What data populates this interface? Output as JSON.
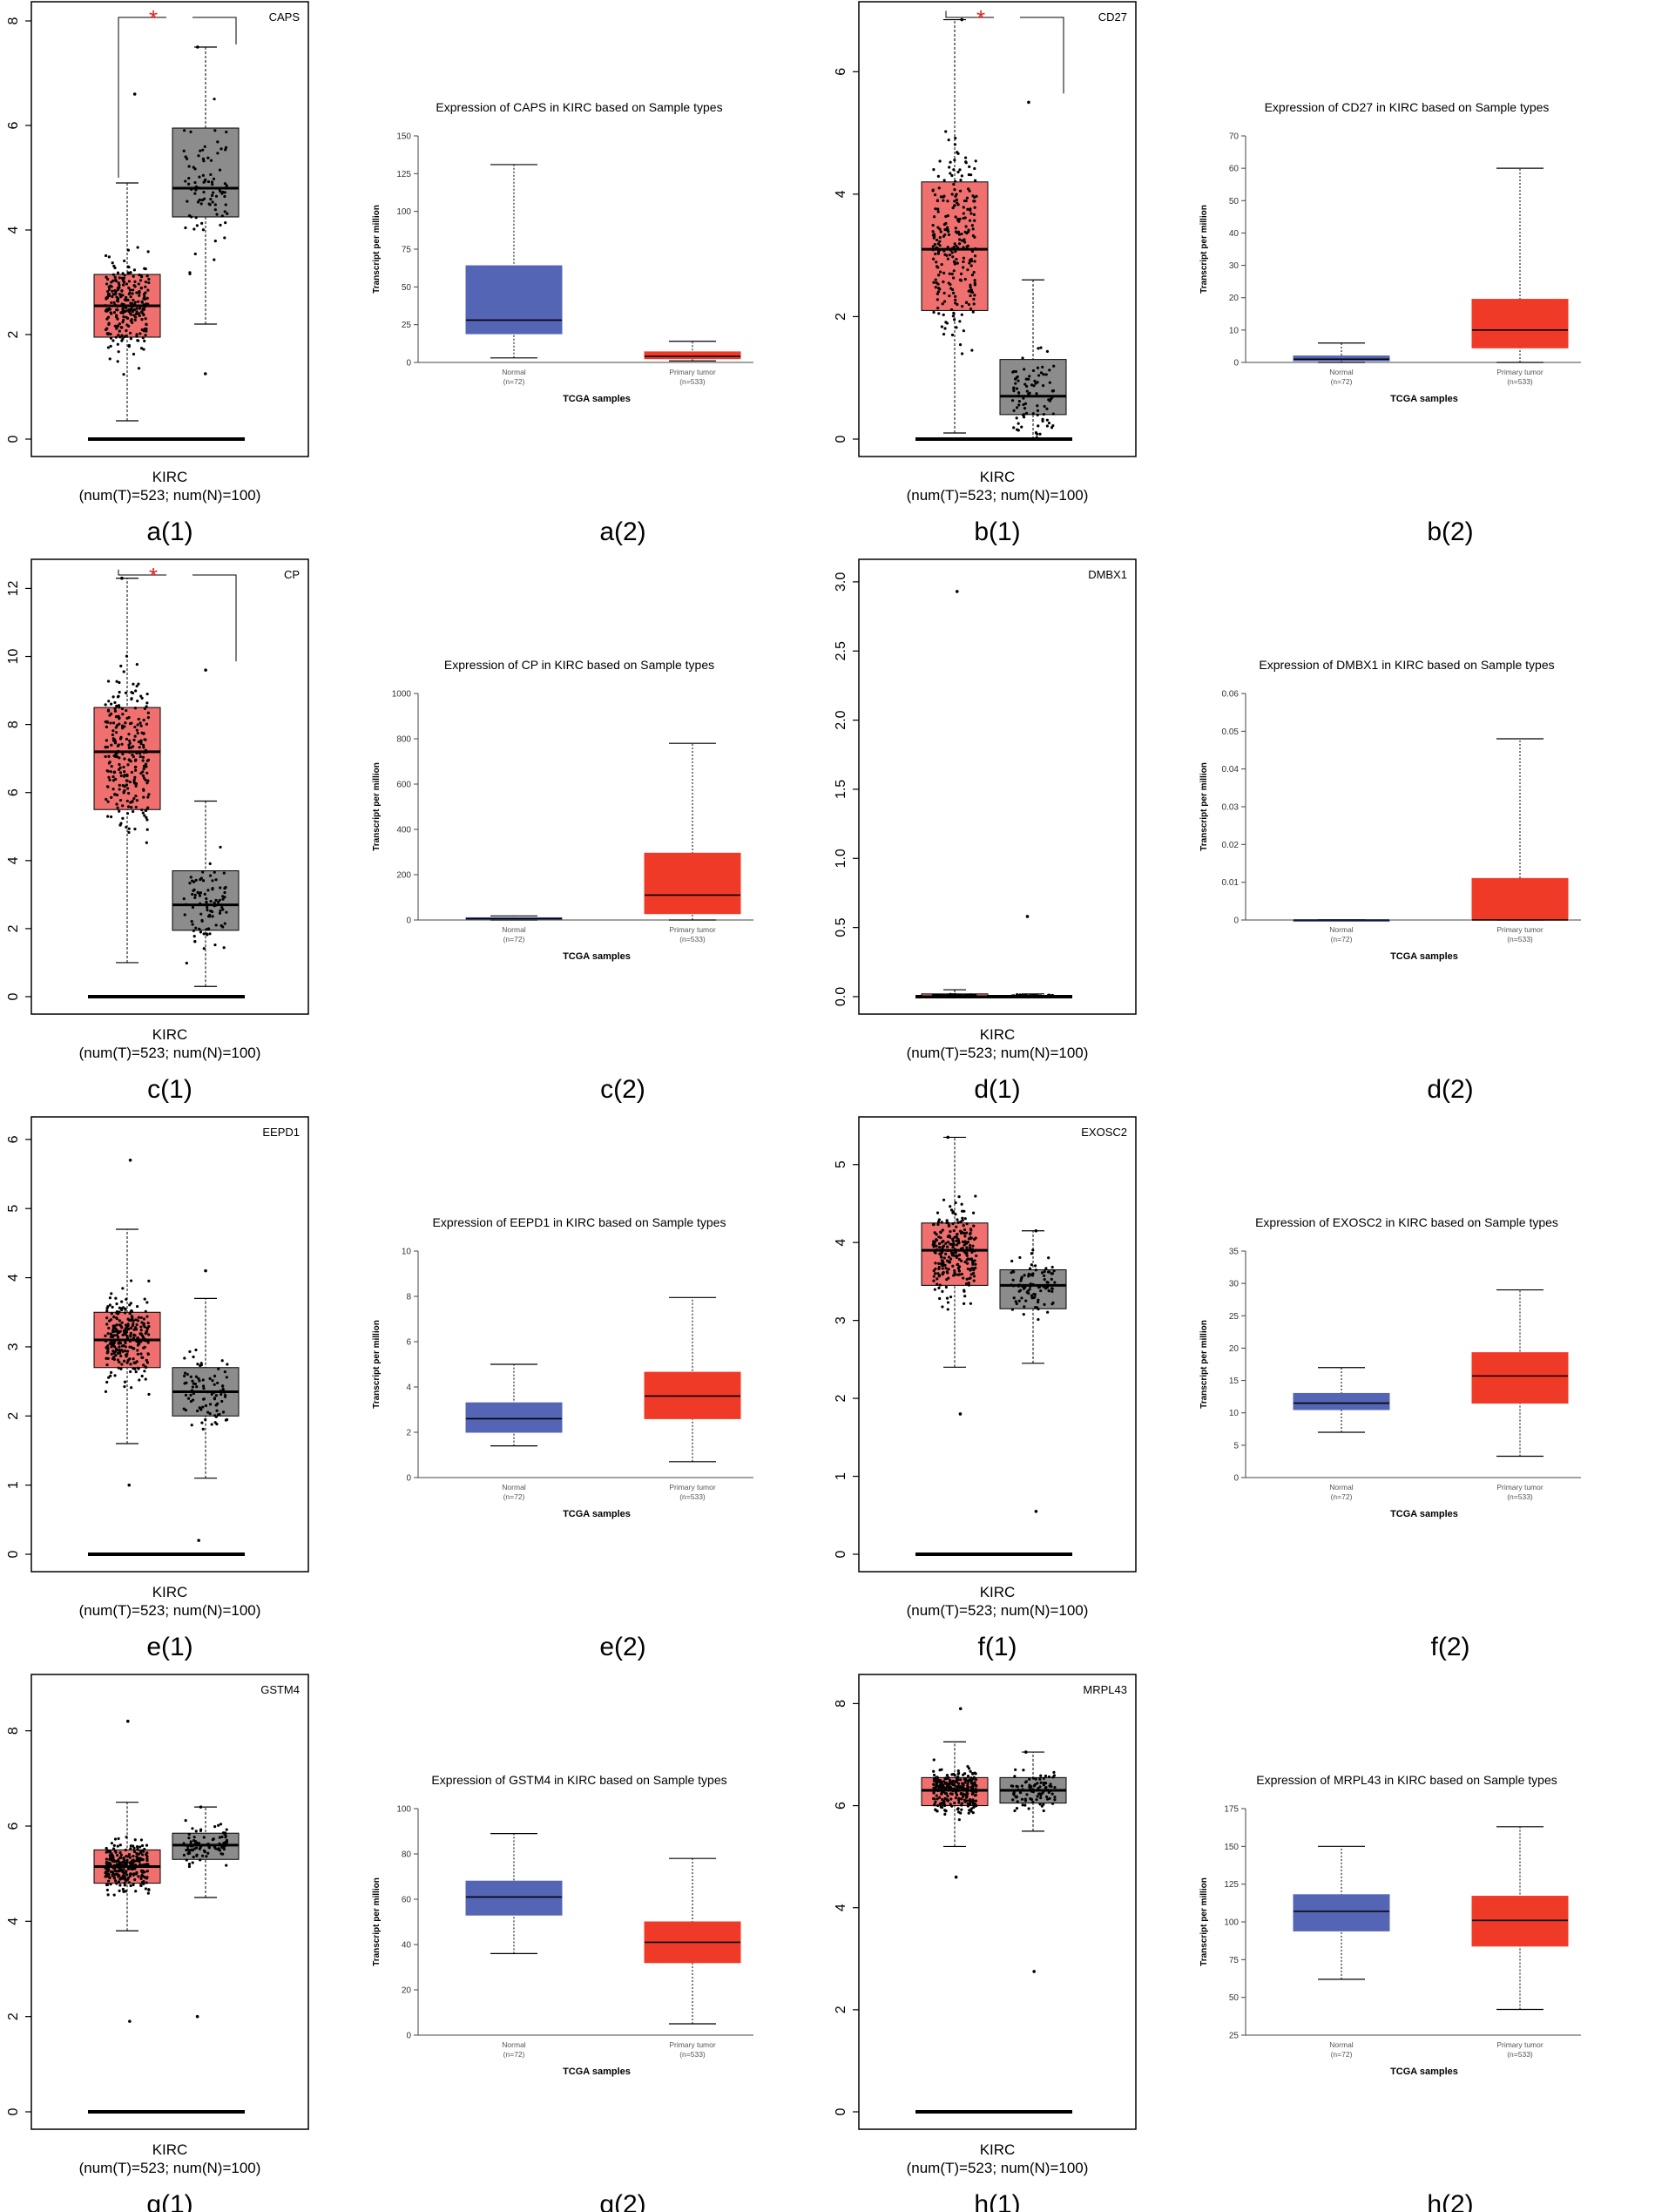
{
  "figure": {
    "gepia_panels": [
      {
        "gene": "CAPS",
        "caption": "a(1)",
        "cancer": "KIRC",
        "counts": "(num(T)=523; num(N)=100)",
        "yticks": [
          "0",
          "2",
          "4",
          "6",
          "8"
        ],
        "ymax": 8.2,
        "significant": true,
        "star": "*",
        "tumor_box": {
          "lo": 0.35,
          "q1": 1.95,
          "med": 2.55,
          "q3": 3.15,
          "hi": 4.9,
          "maxpt": 6.6
        },
        "normal_box": {
          "lo": 2.2,
          "q1": 4.25,
          "med": 4.8,
          "q3": 5.95,
          "hi": 7.5,
          "maxpt": 7.5,
          "minpt": 1.25
        },
        "chart_data": {
          "type": "box",
          "title": "CAPS",
          "xlabel": "KIRC",
          "categories": [
            "Tumor",
            "Normal"
          ],
          "ylim": [
            0,
            8.2
          ]
        }
      },
      {
        "gene": "CD27",
        "caption": "b(1)",
        "cancer": "KIRC",
        "counts": "(num(T)=523; num(N)=100)",
        "yticks": [
          "0",
          "2",
          "4",
          "6"
        ],
        "ymax": 7.0,
        "significant": true,
        "star": "*",
        "tumor_box": {
          "lo": 0.1,
          "q1": 2.1,
          "med": 3.1,
          "q3": 4.2,
          "hi": 6.85,
          "maxpt": 6.85
        },
        "normal_box": {
          "lo": 0.0,
          "q1": 0.4,
          "med": 0.7,
          "q3": 1.3,
          "hi": 2.6,
          "maxpt": 5.5
        },
        "chart_data": {
          "type": "box",
          "title": "CD27",
          "xlabel": "KIRC",
          "categories": [
            "Tumor",
            "Normal"
          ],
          "ylim": [
            0,
            7.0
          ]
        }
      },
      {
        "gene": "CP",
        "caption": "c(1)",
        "cancer": "KIRC",
        "counts": "(num(T)=523; num(N)=100)",
        "yticks": [
          "0",
          "2",
          "4",
          "6",
          "8",
          "10",
          "12"
        ],
        "ymax": 12.6,
        "significant": true,
        "star": "*",
        "tumor_box": {
          "lo": 1.0,
          "q1": 5.5,
          "med": 7.2,
          "q3": 8.5,
          "hi": 12.3,
          "maxpt": 12.3
        },
        "normal_box": {
          "lo": 0.3,
          "q1": 1.95,
          "med": 2.7,
          "q3": 3.7,
          "hi": 5.75,
          "maxpt": 9.6
        },
        "chart_data": {
          "type": "box",
          "title": "CP",
          "xlabel": "KIRC",
          "categories": [
            "Tumor",
            "Normal"
          ],
          "ylim": [
            0,
            12.6
          ]
        }
      },
      {
        "gene": "DMBX1",
        "caption": "d(1)",
        "cancer": "KIRC",
        "counts": "(num(T)=523; num(N)=100)",
        "yticks": [
          "0.0",
          "0.5",
          "1.0",
          "1.5",
          "2.0",
          "2.5",
          "3.0"
        ],
        "ymax": 3.1,
        "significant": false,
        "star": "",
        "tumor_box": {
          "lo": 0.0,
          "q1": 0.0,
          "med": 0.0,
          "q3": 0.02,
          "hi": 0.05,
          "maxpt": 2.93
        },
        "normal_box": {
          "lo": 0.0,
          "q1": 0.0,
          "med": 0.0,
          "q3": 0.0,
          "hi": 0.02,
          "maxpt": 0.58
        },
        "chart_data": {
          "type": "box",
          "title": "DMBX1",
          "xlabel": "KIRC",
          "categories": [
            "Tumor",
            "Normal"
          ],
          "ylim": [
            0,
            3.1
          ]
        }
      },
      {
        "gene": "EEPD1",
        "caption": "e(1)",
        "cancer": "KIRC",
        "counts": "(num(T)=523; num(N)=100)",
        "yticks": [
          "0",
          "1",
          "2",
          "3",
          "4",
          "5",
          "6"
        ],
        "ymax": 6.2,
        "significant": false,
        "star": "",
        "tumor_box": {
          "lo": 1.6,
          "q1": 2.7,
          "med": 3.1,
          "q3": 3.5,
          "hi": 4.7,
          "maxpt": 5.7,
          "minpt": 1.0
        },
        "normal_box": {
          "lo": 1.1,
          "q1": 2.0,
          "med": 2.35,
          "q3": 2.7,
          "hi": 3.7,
          "maxpt": 4.1,
          "minpt": 0.2
        },
        "chart_data": {
          "type": "box",
          "title": "EEPD1",
          "xlabel": "KIRC",
          "categories": [
            "Tumor",
            "Normal"
          ],
          "ylim": [
            0,
            6.2
          ]
        }
      },
      {
        "gene": "EXOSC2",
        "caption": "f(1)",
        "cancer": "KIRC",
        "counts": "(num(T)=523; num(N)=100)",
        "yticks": [
          "0",
          "1",
          "2",
          "3",
          "4",
          "5"
        ],
        "ymax": 5.5,
        "significant": false,
        "star": "",
        "tumor_box": {
          "lo": 2.4,
          "q1": 3.45,
          "med": 3.9,
          "q3": 4.25,
          "hi": 5.35,
          "maxpt": 5.35,
          "minpt": 1.8
        },
        "normal_box": {
          "lo": 2.45,
          "q1": 3.15,
          "med": 3.45,
          "q3": 3.65,
          "hi": 4.15,
          "maxpt": 4.15,
          "minpt": 0.55
        },
        "chart_data": {
          "type": "box",
          "title": "EXOSC2",
          "xlabel": "KIRC",
          "categories": [
            "Tumor",
            "Normal"
          ],
          "ylim": [
            0,
            5.5
          ]
        }
      },
      {
        "gene": "GSTM4",
        "caption": "g(1)",
        "cancer": "KIRC",
        "counts": "(num(T)=523; num(N)=100)",
        "yticks": [
          "0",
          "2",
          "4",
          "6",
          "8"
        ],
        "ymax": 9.0,
        "significant": false,
        "star": "",
        "tumor_box": {
          "lo": 3.8,
          "q1": 4.8,
          "med": 5.15,
          "q3": 5.5,
          "hi": 6.5,
          "maxpt": 8.2,
          "minpt": 1.9
        },
        "normal_box": {
          "lo": 4.5,
          "q1": 5.3,
          "med": 5.6,
          "q3": 5.85,
          "hi": 6.4,
          "maxpt": 6.4,
          "minpt": 2.0
        },
        "chart_data": {
          "type": "box",
          "title": "GSTM4",
          "xlabel": "KIRC",
          "categories": [
            "Tumor",
            "Normal"
          ],
          "ylim": [
            0,
            9.0
          ]
        }
      },
      {
        "gene": "MRPL43",
        "caption": "h(1)",
        "cancer": "KIRC",
        "counts": "(num(T)=523; num(N)=100)",
        "yticks": [
          "0",
          "2",
          "4",
          "6",
          "8"
        ],
        "ymax": 8.4,
        "significant": false,
        "star": "",
        "tumor_box": {
          "lo": 5.2,
          "q1": 6.0,
          "med": 6.3,
          "q3": 6.55,
          "hi": 7.25,
          "maxpt": 7.9,
          "minpt": 4.6
        },
        "normal_box": {
          "lo": 5.5,
          "q1": 6.05,
          "med": 6.3,
          "q3": 6.55,
          "hi": 7.05,
          "maxpt": 7.05,
          "minpt": 2.75
        },
        "chart_data": {
          "type": "box",
          "title": "MRPL43",
          "xlabel": "KIRC",
          "categories": [
            "Tumor",
            "Normal"
          ],
          "ylim": [
            0,
            8.4
          ]
        }
      }
    ],
    "ualcan_panels": [
      {
        "title": "Expression of CAPS in KIRC based on Sample types",
        "caption": "a(2)",
        "ylabel": "Transcript per million",
        "xlabel": "TCGA samples",
        "yticks": [
          "0",
          "25",
          "50",
          "75",
          "100",
          "125",
          "150"
        ],
        "ymin": 0,
        "ymax": 150,
        "normal": {
          "label": "Normal",
          "n": "(n=72)",
          "lo": 3,
          "q1": 19,
          "med": 28,
          "q3": 64,
          "hi": 131
        },
        "tumor": {
          "label": "Primary tumor",
          "n": "(n=533)",
          "lo": 1,
          "q1": 2.5,
          "med": 4,
          "q3": 7,
          "hi": 14
        },
        "chart_data": {
          "type": "box",
          "title": "Expression of CAPS in KIRC based on Sample types",
          "xlabel": "TCGA samples",
          "ylabel": "Transcript per million",
          "categories": [
            "Normal (n=72)",
            "Primary tumor (n=533)"
          ],
          "ylim": [
            0,
            150
          ]
        }
      },
      {
        "title": "Expression of CD27 in KIRC based on Sample types",
        "caption": "b(2)",
        "ylabel": "Transcript per million",
        "xlabel": "TCGA samples",
        "yticks": [
          "0",
          "10",
          "20",
          "30",
          "40",
          "50",
          "60",
          "70"
        ],
        "ymin": 0,
        "ymax": 70,
        "normal": {
          "label": "Normal",
          "n": "(n=72)",
          "lo": 0,
          "q1": 0.5,
          "med": 1,
          "q3": 2,
          "hi": 6
        },
        "tumor": {
          "label": "Primary tumor",
          "n": "(n=533)",
          "lo": 0,
          "q1": 4.5,
          "med": 10,
          "q3": 19.5,
          "hi": 60
        },
        "chart_data": {
          "type": "box",
          "title": "Expression of CD27 in KIRC based on Sample types",
          "xlabel": "TCGA samples",
          "ylabel": "Transcript per million",
          "categories": [
            "Normal (n=72)",
            "Primary tumor (n=533)"
          ],
          "ylim": [
            0,
            70
          ]
        }
      },
      {
        "title": "Expression of CP in KIRC based on Sample types",
        "caption": "c(2)",
        "ylabel": "Transcript per million",
        "xlabel": "TCGA samples",
        "yticks": [
          "0",
          "200",
          "400",
          "600",
          "800",
          "1000"
        ],
        "ymin": 0,
        "ymax": 1000,
        "normal": {
          "label": "Normal",
          "n": "(n=72)",
          "lo": 0,
          "q1": 3,
          "med": 6,
          "q3": 10,
          "hi": 18
        },
        "tumor": {
          "label": "Primary tumor",
          "n": "(n=533)",
          "lo": 0,
          "q1": 28,
          "med": 110,
          "q3": 295,
          "hi": 780
        },
        "chart_data": {
          "type": "box",
          "title": "Expression of CP in KIRC based on Sample types",
          "xlabel": "TCGA samples",
          "ylabel": "Transcript per million",
          "categories": [
            "Normal (n=72)",
            "Primary tumor (n=533)"
          ],
          "ylim": [
            0,
            1000
          ]
        }
      },
      {
        "title": "Expression of DMBX1 in KIRC based on Sample types",
        "caption": "d(2)",
        "ylabel": "Transcript per million",
        "xlabel": "TCGA samples",
        "yticks": [
          "0",
          "0.01",
          "0.02",
          "0.03",
          "0.04",
          "0.05",
          "0.06"
        ],
        "ymin": 0,
        "ymax": 0.06,
        "normal": {
          "label": "Normal",
          "n": "(n=72)",
          "lo": 0,
          "q1": 0,
          "med": 0,
          "q3": 0,
          "hi": 0
        },
        "tumor": {
          "label": "Primary tumor",
          "n": "(n=533)",
          "lo": 0,
          "q1": 0,
          "med": 0,
          "q3": 0.011,
          "hi": 0.048
        },
        "chart_data": {
          "type": "box",
          "title": "Expression of DMBX1 in KIRC based on Sample types",
          "xlabel": "TCGA samples",
          "ylabel": "Transcript per million",
          "categories": [
            "Normal (n=72)",
            "Primary tumor (n=533)"
          ],
          "ylim": [
            0,
            0.06
          ]
        }
      },
      {
        "title": "Expression of EEPD1 in KIRC based on Sample types",
        "caption": "e(2)",
        "ylabel": "Transcript per million",
        "xlabel": "TCGA samples",
        "yticks": [
          "0",
          "2",
          "4",
          "6",
          "8",
          "10"
        ],
        "ymin": 0,
        "ymax": 10,
        "normal": {
          "label": "Normal",
          "n": "(n=72)",
          "lo": 1.4,
          "q1": 2.0,
          "med": 2.6,
          "q3": 3.3,
          "hi": 5.0
        },
        "tumor": {
          "label": "Primary tumor",
          "n": "(n=533)",
          "lo": 0.7,
          "q1": 2.6,
          "med": 3.6,
          "q3": 4.65,
          "hi": 7.95
        },
        "chart_data": {
          "type": "box",
          "title": "Expression of EEPD1 in KIRC based on Sample types",
          "xlabel": "TCGA samples",
          "ylabel": "Transcript per million",
          "categories": [
            "Normal (n=72)",
            "Primary tumor (n=533)"
          ],
          "ylim": [
            0,
            10
          ]
        }
      },
      {
        "title": "Expression of EXOSC2 in KIRC based on Sample types",
        "caption": "f(2)",
        "ylabel": "Transcript per million",
        "xlabel": "TCGA samples",
        "yticks": [
          "0",
          "5",
          "10",
          "15",
          "20",
          "25",
          "30",
          "35"
        ],
        "ymin": 0,
        "ymax": 35,
        "normal": {
          "label": "Normal",
          "n": "(n=72)",
          "lo": 7,
          "q1": 10.5,
          "med": 11.5,
          "q3": 13,
          "hi": 17
        },
        "tumor": {
          "label": "Primary tumor",
          "n": "(n=533)",
          "lo": 3.3,
          "q1": 11.5,
          "med": 15.7,
          "q3": 19.3,
          "hi": 29
        },
        "chart_data": {
          "type": "box",
          "title": "Expression of EXOSC2 in KIRC based on Sample types",
          "xlabel": "TCGA samples",
          "ylabel": "Transcript per million",
          "categories": [
            "Normal (n=72)",
            "Primary tumor (n=533)"
          ],
          "ylim": [
            0,
            35
          ]
        }
      },
      {
        "title": "Expression of GSTM4 in KIRC based on Sample types",
        "caption": "g(2)",
        "ylabel": "Transcript per million",
        "xlabel": "TCGA samples",
        "yticks": [
          "0",
          "20",
          "40",
          "60",
          "80",
          "100"
        ],
        "ymin": 0,
        "ymax": 100,
        "normal": {
          "label": "Normal",
          "n": "(n=72)",
          "lo": 36,
          "q1": 53,
          "med": 61,
          "q3": 68,
          "hi": 89
        },
        "tumor": {
          "label": "Primary tumor",
          "n": "(n=533)",
          "lo": 5,
          "q1": 32,
          "med": 41,
          "q3": 50,
          "hi": 78
        },
        "chart_data": {
          "type": "box",
          "title": "Expression of GSTM4 in KIRC based on Sample types",
          "xlabel": "TCGA samples",
          "ylabel": "Transcript per million",
          "categories": [
            "Normal (n=72)",
            "Primary tumor (n=533)"
          ],
          "ylim": [
            0,
            100
          ]
        }
      },
      {
        "title": "Expression of MRPL43 in KIRC based on Sample types",
        "caption": "h(2)",
        "ylabel": "Transcript per million",
        "xlabel": "TCGA samples",
        "yticks": [
          "25",
          "50",
          "75",
          "100",
          "125",
          "150",
          "175"
        ],
        "ymin": 25,
        "ymax": 175,
        "normal": {
          "label": "Normal",
          "n": "(n=72)",
          "lo": 62,
          "q1": 94,
          "med": 107,
          "q3": 118,
          "hi": 150
        },
        "tumor": {
          "label": "Primary tumor",
          "n": "(n=533)",
          "lo": 42,
          "q1": 84,
          "med": 101,
          "q3": 117,
          "hi": 163
        },
        "chart_data": {
          "type": "box",
          "title": "Expression of MRPL43 in KIRC based on Sample types",
          "xlabel": "TCGA samples",
          "ylabel": "Transcript per million",
          "categories": [
            "Normal (n=72)",
            "Primary tumor (n=533)"
          ],
          "ylim": [
            25,
            175
          ]
        }
      }
    ],
    "colors": {
      "gepia_tumor": "#f07070",
      "gepia_normal": "#8c8c8c",
      "ualcan_normal": "#5565b5",
      "ualcan_tumor": "#f03a28",
      "star": "#e02020"
    }
  }
}
